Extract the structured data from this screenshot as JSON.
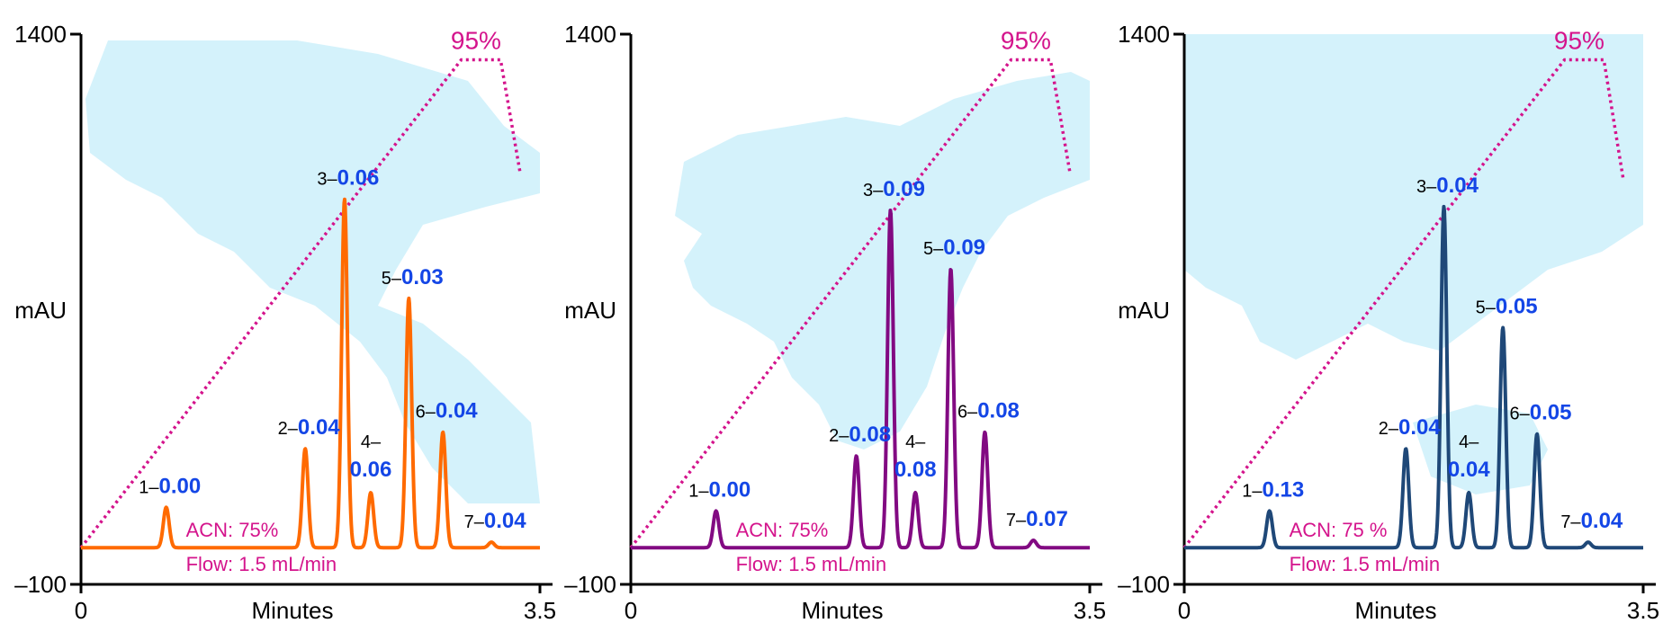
{
  "chart_data": [
    {
      "type": "line",
      "color": "#ff6a00",
      "xlabel": "Minutes",
      "ylabel": "mAU",
      "xlim": [
        0,
        3.5
      ],
      "ylim": [
        -100,
        1400
      ],
      "x_ticks": [
        "0",
        "3.5"
      ],
      "y_ticks": [
        "1400",
        "–100"
      ],
      "gradient": {
        "start_label": "ACN: 75%",
        "end_label": "95%",
        "points": [
          [
            0,
            0
          ],
          [
            2.9,
            1330
          ],
          [
            3.2,
            1330
          ],
          [
            3.35,
            1020
          ]
        ]
      },
      "flow_label": "Flow: 1.5 mL/min",
      "peaks": [
        {
          "id": "1–",
          "value": "0.00",
          "x": 0.65,
          "height": 110,
          "layout": "inline"
        },
        {
          "id": "2–",
          "value": "0.04",
          "x": 1.71,
          "height": 270,
          "layout": "inline"
        },
        {
          "id": "3–",
          "value": "0.06",
          "x": 2.01,
          "height": 950,
          "layout": "inline"
        },
        {
          "id": "4–",
          "value": "0.06",
          "x": 2.21,
          "height": 150,
          "layout": "stacked"
        },
        {
          "id": "5–",
          "value": "0.03",
          "x": 2.5,
          "height": 680,
          "layout": "inline"
        },
        {
          "id": "6–",
          "value": "0.04",
          "x": 2.76,
          "height": 315,
          "layout": "inline"
        },
        {
          "id": "7–",
          "value": "0.04",
          "x": 3.13,
          "height": 15,
          "layout": "inline"
        }
      ]
    },
    {
      "type": "line",
      "color": "#820a82",
      "xlabel": "Minutes",
      "ylabel": "mAU",
      "xlim": [
        0,
        3.5
      ],
      "ylim": [
        -100,
        1400
      ],
      "x_ticks": [
        "0",
        "3.5"
      ],
      "y_ticks": [
        "1400",
        "–100"
      ],
      "gradient": {
        "start_label": "ACN: 75%",
        "end_label": "95%",
        "points": [
          [
            0,
            0
          ],
          [
            2.9,
            1330
          ],
          [
            3.2,
            1330
          ],
          [
            3.35,
            1020
          ]
        ]
      },
      "flow_label": "Flow: 1.5 mL/min",
      "peaks": [
        {
          "id": "1–",
          "value": "0.00",
          "x": 0.65,
          "height": 100,
          "layout": "inline"
        },
        {
          "id": "2–",
          "value": "0.08",
          "x": 1.72,
          "height": 250,
          "layout": "inline"
        },
        {
          "id": "3–",
          "value": "0.09",
          "x": 1.98,
          "height": 920,
          "layout": "inline"
        },
        {
          "id": "4–",
          "value": "0.08",
          "x": 2.17,
          "height": 150,
          "layout": "stacked"
        },
        {
          "id": "5–",
          "value": "0.09",
          "x": 2.44,
          "height": 760,
          "layout": "inline"
        },
        {
          "id": "6–",
          "value": "0.08",
          "x": 2.7,
          "height": 315,
          "layout": "inline"
        },
        {
          "id": "7–",
          "value": "0.07",
          "x": 3.07,
          "height": 20,
          "layout": "inline"
        }
      ]
    },
    {
      "type": "line",
      "color": "#1f4878",
      "xlabel": "Minutes",
      "ylabel": "mAU",
      "xlim": [
        0,
        3.5
      ],
      "ylim": [
        -100,
        1400
      ],
      "x_ticks": [
        "0",
        "3.5"
      ],
      "y_ticks": [
        "1400",
        "–100"
      ],
      "gradient": {
        "start_label": "ACN: 75 %",
        "end_label": "95%",
        "points": [
          [
            0,
            0
          ],
          [
            2.9,
            1330
          ],
          [
            3.2,
            1330
          ],
          [
            3.35,
            1000
          ]
        ]
      },
      "flow_label": "Flow: 1.5 mL/min",
      "peaks": [
        {
          "id": "1–",
          "value": "0.13",
          "x": 0.65,
          "height": 100,
          "layout": "inline"
        },
        {
          "id": "2–",
          "value": "0.04",
          "x": 1.69,
          "height": 270,
          "layout": "inline"
        },
        {
          "id": "3–",
          "value": "0.04",
          "x": 1.98,
          "height": 930,
          "layout": "inline"
        },
        {
          "id": "4–",
          "value": "0.04",
          "x": 2.17,
          "height": 150,
          "layout": "stacked"
        },
        {
          "id": "5–",
          "value": "0.05",
          "x": 2.43,
          "height": 600,
          "layout": "inline"
        },
        {
          "id": "6–",
          "value": "0.05",
          "x": 2.69,
          "height": 310,
          "layout": "inline"
        },
        {
          "id": "7–",
          "value": "0.04",
          "x": 3.08,
          "height": 15,
          "layout": "inline"
        }
      ]
    }
  ],
  "colors": {
    "gradient": "#d4148c",
    "annotation_value": "#1446e6",
    "axis": "#000000",
    "map": "#d4f2fb"
  }
}
